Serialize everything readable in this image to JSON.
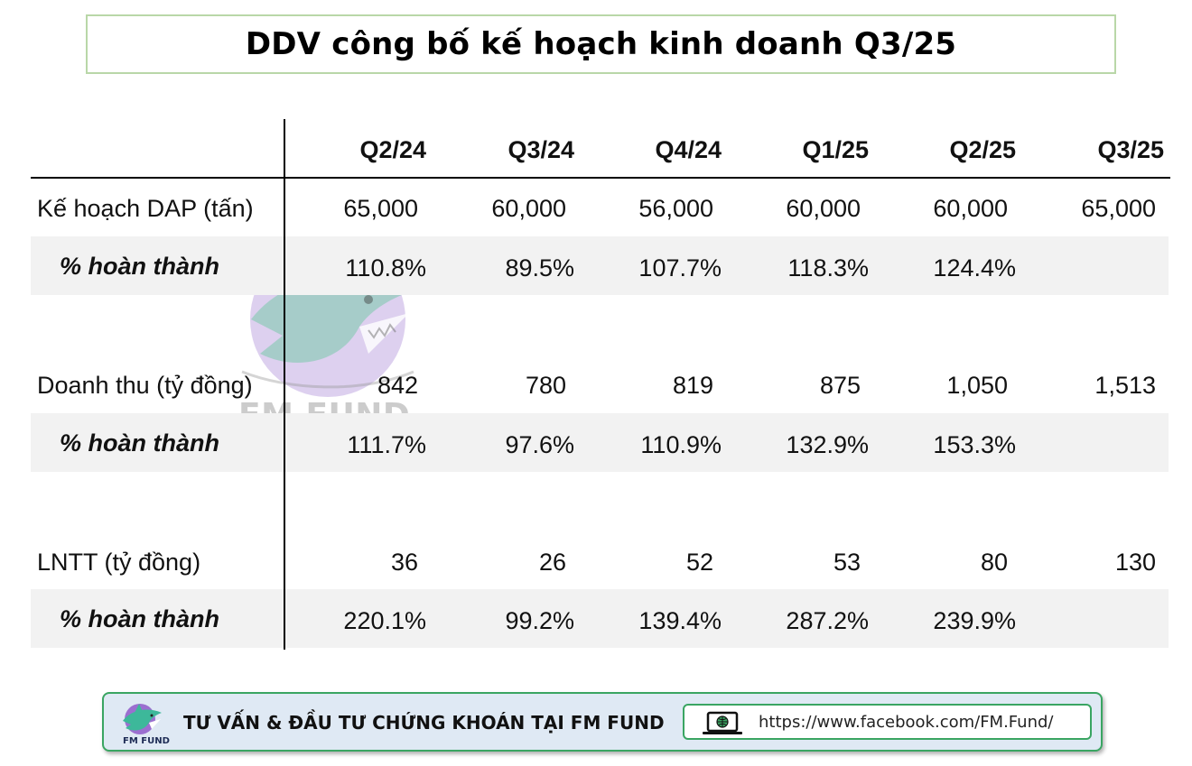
{
  "title": "DDV công bố kế hoạch kinh doanh Q3/25",
  "watermark_text": "FM FUND",
  "table": {
    "columns": [
      "Q2/24",
      "Q3/24",
      "Q4/24",
      "Q1/25",
      "Q2/25",
      "Q3/25"
    ],
    "rows": [
      {
        "label": "Kế hoạch DAP (tấn)",
        "values": [
          "65,000",
          "60,000",
          "56,000",
          "60,000",
          "60,000",
          "65,000"
        ]
      },
      {
        "label": "% hoàn thành",
        "values": [
          "110.8%",
          "89.5%",
          "107.7%",
          "118.3%",
          "124.4%",
          ""
        ]
      },
      {
        "label": "Doanh thu (tỷ đồng)",
        "values": [
          "842",
          "780",
          "819",
          "875",
          "1,050",
          "1,513"
        ]
      },
      {
        "label": "% hoàn thành",
        "values": [
          "111.7%",
          "97.6%",
          "110.9%",
          "132.9%",
          "153.3%",
          ""
        ]
      },
      {
        "label": "LNTT (tỷ đồng)",
        "values": [
          "36",
          "26",
          "52",
          "53",
          "80",
          "130"
        ]
      },
      {
        "label": "% hoàn thành",
        "values": [
          "220.1%",
          "99.2%",
          "139.4%",
          "287.2%",
          "239.9%",
          ""
        ]
      }
    ]
  },
  "footer": {
    "logo_text": "FM FUND",
    "text": "TƯ VẤN & ĐẦU TƯ CHỨNG KHOÁN TẠI FM FUND",
    "link": "https://www.facebook.com/FM.Fund/",
    "icon": "globe-laptop-icon"
  },
  "colors": {
    "title_border": "#b9d7a8",
    "row_shade": "#f2f2f2",
    "footer_border": "#3aa562",
    "footer_bg": "#dfe9f4"
  }
}
